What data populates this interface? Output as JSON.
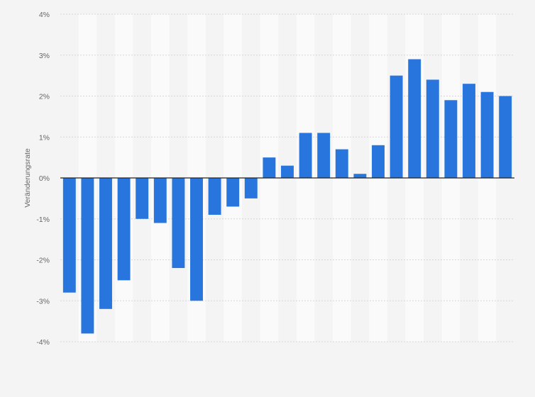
{
  "chart_data": {
    "type": "bar",
    "title": "",
    "xlabel": "",
    "ylabel": "Veränderungsrate",
    "ylim": [
      -4,
      4
    ],
    "yticks": [
      4,
      3,
      2,
      1,
      0,
      -1,
      -2,
      -3,
      -4
    ],
    "ytick_labels": [
      "4%",
      "3%",
      "2%",
      "1%",
      "0%",
      "-1%",
      "-2%",
      "-3%",
      "-4%"
    ],
    "grid": true,
    "legend": "none",
    "bar_color": "#2876dd",
    "values": [
      -2.8,
      -3.8,
      -3.2,
      -2.5,
      -1.0,
      -1.1,
      -2.2,
      -3.0,
      -0.9,
      -0.7,
      -0.5,
      0.5,
      0.3,
      1.1,
      1.1,
      0.7,
      0.1,
      0.8,
      2.5,
      2.9,
      2.4,
      1.9,
      2.3,
      2.1,
      2.0
    ]
  }
}
